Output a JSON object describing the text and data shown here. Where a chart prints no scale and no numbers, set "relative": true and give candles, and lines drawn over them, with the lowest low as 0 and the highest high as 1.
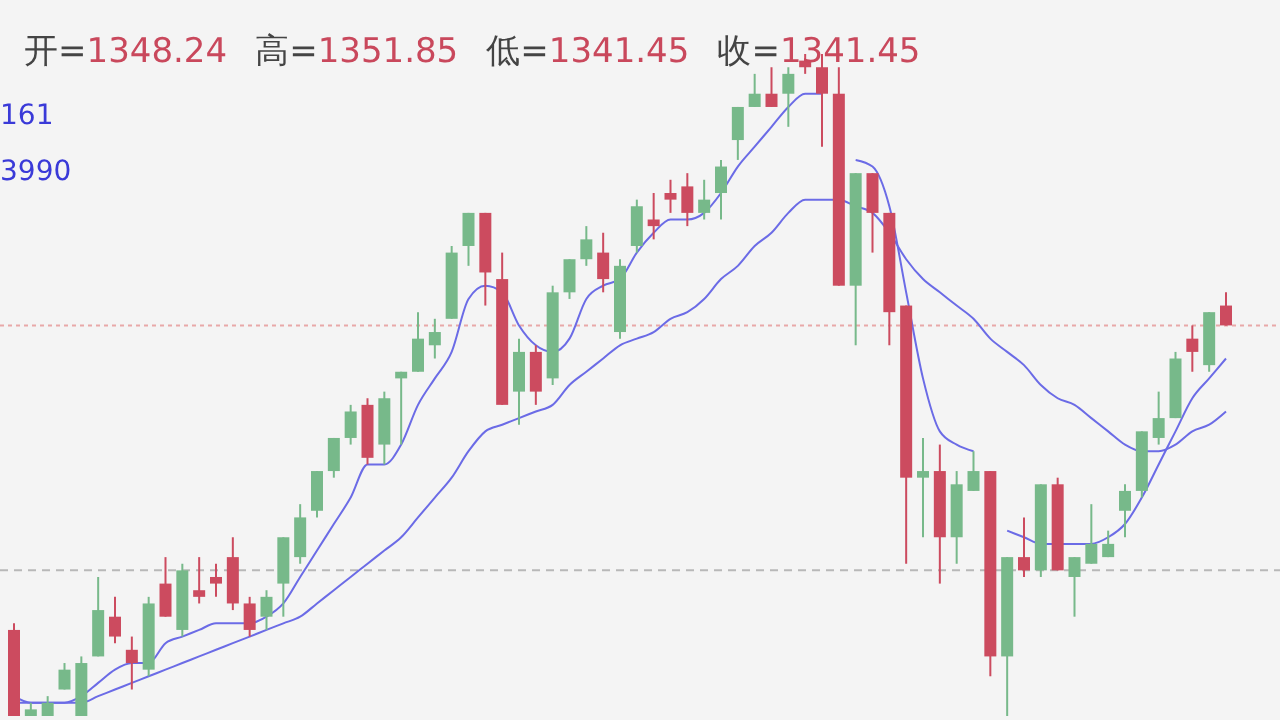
{
  "chart_data": {
    "type": "candlestick",
    "title": "开=1348.24 高=1351.85 低=1341.45 收=1341.45",
    "annotations": [
      "161",
      "3990"
    ],
    "relative": true,
    "categories": [
      null,
      null,
      null,
      null,
      null,
      null,
      null,
      null,
      null,
      null,
      null,
      null,
      null,
      null,
      null,
      null,
      null,
      null,
      null,
      null,
      null,
      null,
      null,
      null,
      null,
      null,
      null,
      null,
      null,
      null,
      null,
      null,
      null,
      null,
      null,
      null,
      null,
      null,
      null,
      null,
      null,
      null,
      null,
      null,
      null,
      null,
      null,
      null,
      null,
      null,
      null,
      null,
      null,
      null,
      null,
      null,
      null,
      null,
      null,
      null,
      null,
      null,
      null,
      null,
      null,
      null,
      null,
      null,
      null,
      null,
      null,
      null,
      null
    ],
    "ohlc": [
      [
        0.13,
        0.14,
        0,
        0
      ],
      [
        0,
        0.02,
        0,
        0.01
      ],
      [
        0,
        0.03,
        0,
        0.02
      ],
      [
        0.04,
        0.08,
        0.04,
        0.07
      ],
      [
        0,
        0.09,
        0,
        0.08
      ],
      [
        0.09,
        0.21,
        0.09,
        0.16
      ],
      [
        0.15,
        0.18,
        0.11,
        0.12
      ],
      [
        0.1,
        0.12,
        0.04,
        0.08
      ],
      [
        0.07,
        0.18,
        0.06,
        0.17
      ],
      [
        0.2,
        0.24,
        0.15,
        0.15
      ],
      [
        0.13,
        0.23,
        0.12,
        0.22
      ],
      [
        0.19,
        0.24,
        0.17,
        0.18
      ],
      [
        0.21,
        0.23,
        0.18,
        0.2
      ],
      [
        0.24,
        0.27,
        0.16,
        0.17
      ],
      [
        0.17,
        0.18,
        0.12,
        0.13
      ],
      [
        0.15,
        0.19,
        0.13,
        0.18
      ],
      [
        0.2,
        0.27,
        0.15,
        0.27
      ],
      [
        0.24,
        0.32,
        0.23,
        0.3
      ],
      [
        0.31,
        0.37,
        0.3,
        0.37
      ],
      [
        0.37,
        0.42,
        0.36,
        0.42
      ],
      [
        0.42,
        0.47,
        0.41,
        0.46
      ],
      [
        0.47,
        0.48,
        0.38,
        0.39
      ],
      [
        0.41,
        0.49,
        0.38,
        0.48
      ],
      [
        0.51,
        0.52,
        0.41,
        0.52
      ],
      [
        0.52,
        0.61,
        0.52,
        0.57
      ],
      [
        0.56,
        0.6,
        0.54,
        0.58
      ],
      [
        0.6,
        0.71,
        0.6,
        0.7
      ],
      [
        0.71,
        0.76,
        0.68,
        0.76
      ],
      [
        0.76,
        0.76,
        0.62,
        0.67
      ],
      [
        0.66,
        0.7,
        0.47,
        0.47
      ],
      [
        0.49,
        0.57,
        0.44,
        0.55
      ],
      [
        0.55,
        0.56,
        0.47,
        0.49
      ],
      [
        0.51,
        0.65,
        0.5,
        0.64
      ],
      [
        0.64,
        0.69,
        0.63,
        0.69
      ],
      [
        0.69,
        0.74,
        0.68,
        0.72
      ],
      [
        0.7,
        0.73,
        0.64,
        0.66
      ],
      [
        0.58,
        0.69,
        0.57,
        0.68
      ],
      [
        0.71,
        0.78,
        0.7,
        0.77
      ],
      [
        0.75,
        0.79,
        0.72,
        0.74
      ],
      [
        0.79,
        0.81,
        0.76,
        0.78
      ],
      [
        0.8,
        0.82,
        0.74,
        0.76
      ],
      [
        0.76,
        0.81,
        0.75,
        0.78
      ],
      [
        0.79,
        0.84,
        0.75,
        0.83
      ],
      [
        0.87,
        0.92,
        0.84,
        0.92
      ],
      [
        0.92,
        0.97,
        0.92,
        0.94
      ],
      [
        0.94,
        0.98,
        0.92,
        0.92
      ],
      [
        0.94,
        0.98,
        0.89,
        0.97
      ],
      [
        0.99,
        1,
        0.97,
        0.98
      ],
      [
        0.98,
        1,
        0.86,
        0.94
      ],
      [
        0.94,
        0.98,
        0.65,
        0.65
      ],
      [
        0.65,
        0.82,
        0.56,
        0.82
      ],
      [
        0.82,
        0.82,
        0.7,
        0.76
      ],
      [
        0.76,
        0.76,
        0.56,
        0.61
      ],
      [
        0.62,
        0.62,
        0.23,
        0.36
      ],
      [
        0.36,
        0.42,
        0.27,
        0.37
      ],
      [
        0.37,
        0.41,
        0.2,
        0.27
      ],
      [
        0.27,
        0.37,
        0.23,
        0.35
      ],
      [
        0.34,
        0.4,
        0.34,
        0.37
      ],
      [
        0.37,
        0.37,
        0.06,
        0.09
      ],
      [
        0.09,
        0.24,
        0,
        0.24
      ],
      [
        0.24,
        0.3,
        0.21,
        0.22
      ],
      [
        0.22,
        0.35,
        0.21,
        0.35
      ],
      [
        0.35,
        0.36,
        0.22,
        0.22
      ],
      [
        0.21,
        0.24,
        0.15,
        0.24
      ],
      [
        0.23,
        0.32,
        0.23,
        0.26
      ],
      [
        0.24,
        0.28,
        0.24,
        0.26
      ],
      [
        0.31,
        0.35,
        0.27,
        0.34
      ],
      [
        0.34,
        0.43,
        0.33,
        0.43
      ],
      [
        0.42,
        0.49,
        0.41,
        0.45
      ],
      [
        0.45,
        0.55,
        0.45,
        0.54
      ],
      [
        0.57,
        0.59,
        0.52,
        0.55
      ],
      [
        0.53,
        0.61,
        0.52,
        0.61
      ],
      [
        0.62,
        0.64,
        0.59,
        0.59
      ]
    ],
    "series": [
      {
        "type": "line",
        "color": "#6b6be6",
        "values": [
          0.03,
          0.02,
          0.02,
          0.02,
          0.03,
          0.05,
          0.07,
          0.08,
          0.08,
          0.11,
          0.12,
          0.13,
          0.14,
          0.14,
          0.14,
          0.15,
          0.17,
          0.21,
          0.25,
          0.29,
          0.33,
          0.38,
          0.38,
          0.41,
          0.47,
          0.51,
          0.55,
          0.63,
          0.65,
          0.64,
          0.59,
          0.56,
          0.55,
          0.57,
          0.63,
          0.65,
          0.66,
          0.7,
          0.73,
          0.75,
          0.75,
          0.76,
          0.79,
          0.83,
          0.86,
          0.89,
          0.92,
          0.94,
          0.94,
          null,
          0.84,
          0.83,
          0.77,
          0.64,
          0.51,
          0.43,
          0.41,
          0.4,
          null,
          0.28,
          0.27,
          0.26,
          0.26,
          0.26,
          0.26,
          0.27,
          0.29,
          0.33,
          0.38,
          0.43,
          0.48,
          0.51,
          0.54
        ]
      },
      {
        "type": "line",
        "color": "#6b6be6",
        "values": [
          0.02,
          0.02,
          0.02,
          0.02,
          0.02,
          0.03,
          0.04,
          0.05,
          0.06,
          0.07,
          0.08,
          0.09,
          0.1,
          0.11,
          0.12,
          0.13,
          0.14,
          0.15,
          0.17,
          0.19,
          0.21,
          0.23,
          0.25,
          0.27,
          0.3,
          0.33,
          0.36,
          0.4,
          0.43,
          0.44,
          0.45,
          0.46,
          0.47,
          0.5,
          0.52,
          0.54,
          0.56,
          0.57,
          0.58,
          0.6,
          0.61,
          0.63,
          0.66,
          0.68,
          0.71,
          0.73,
          0.76,
          0.78,
          0.78,
          0.78,
          0.77,
          0.76,
          0.73,
          0.69,
          0.66,
          0.64,
          0.62,
          0.6,
          0.57,
          0.55,
          0.53,
          0.5,
          0.48,
          0.47,
          0.45,
          0.43,
          0.41,
          0.4,
          0.4,
          0.41,
          0.43,
          0.44,
          0.46
        ]
      }
    ],
    "ref_lines": [
      {
        "axis": "y",
        "value": 0.59,
        "color": "#e8a8a8",
        "line_style": "dotted"
      },
      {
        "axis": "y",
        "value": 0.22,
        "color": "#b8b8b8",
        "line_style": "dashed"
      }
    ]
  }
}
